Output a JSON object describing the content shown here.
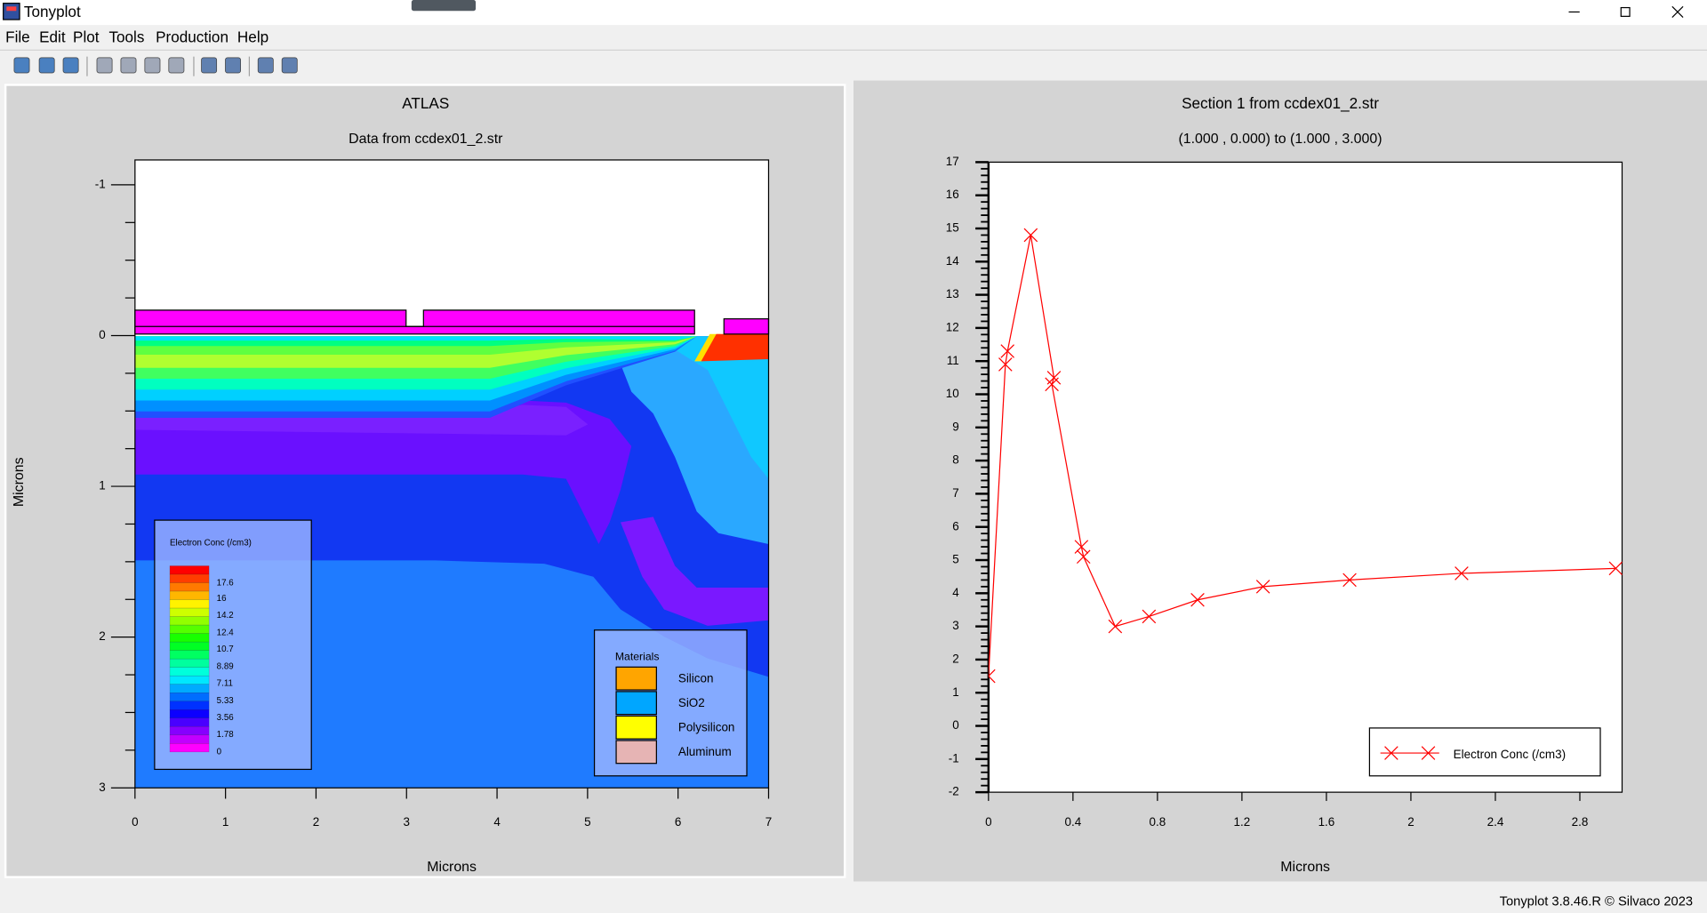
{
  "window": {
    "title": "Tonyplot",
    "menu": [
      "File",
      "Edit",
      "Plot",
      "Tools",
      "Production",
      "Help"
    ],
    "status": "Tonyplot 3.8.46.R © Silvaco 2023"
  },
  "chart_data": [
    {
      "type": "contour",
      "title": "ATLAS",
      "subtitle": "Data from ccdex01_2.str",
      "x_label": "Microns",
      "y_label": "Microns",
      "xlim": [
        0,
        7
      ],
      "ylim": [
        3,
        -1.165
      ],
      "xticks": [
        0,
        1,
        2,
        3,
        4,
        5,
        6,
        7
      ],
      "yticks": [
        -1,
        0,
        1,
        2,
        3
      ],
      "colorbar": {
        "title": "Electron Conc (/cm3)",
        "clim": [
          0,
          19.4
        ],
        "ticks": [
          17.6,
          16,
          14.2,
          12.4,
          10.7,
          8.89,
          7.11,
          5.33,
          3.56,
          1.78,
          0
        ]
      },
      "materials": {
        "title": "Materials",
        "items": [
          {
            "name": "Silicon",
            "color": "#ffa500"
          },
          {
            "name": "SiO2",
            "color": "#00a6ff"
          },
          {
            "name": "Polysilicon",
            "color": "#ffff00"
          },
          {
            "name": "Aluminum",
            "color": "#e6b4b4"
          }
        ]
      }
    },
    {
      "type": "line",
      "title": "Section 1 from ccdex01_2.str",
      "subtitle": "(1.000 , 0.000) to (1.000 , 3.000)",
      "x_label": "Microns",
      "xlim": [
        0,
        3
      ],
      "ylim": [
        -2,
        17
      ],
      "xticks": [
        0,
        0.4,
        0.8,
        1.2,
        1.6,
        2,
        2.4,
        2.8
      ],
      "yticks": [
        -2,
        -1,
        0,
        1,
        2,
        3,
        4,
        5,
        6,
        7,
        8,
        9,
        10,
        11,
        12,
        13,
        14,
        15,
        16,
        17
      ],
      "x": [
        0,
        0.08,
        0.09,
        0.2,
        0.31,
        0.3,
        0.44,
        0.45,
        0.6,
        0.76,
        0.99,
        1.3,
        1.71,
        2.24,
        2.97
      ],
      "series": [
        {
          "name": "Electron Conc (/cm3)",
          "color": "#ff0000",
          "values": [
            1.5,
            10.9,
            11.3,
            14.8,
            10.5,
            10.3,
            5.4,
            5.1,
            3.0,
            3.3,
            3.8,
            4.2,
            4.4,
            4.6,
            4.75
          ]
        }
      ],
      "marker": "x",
      "legend": "lower right"
    }
  ]
}
